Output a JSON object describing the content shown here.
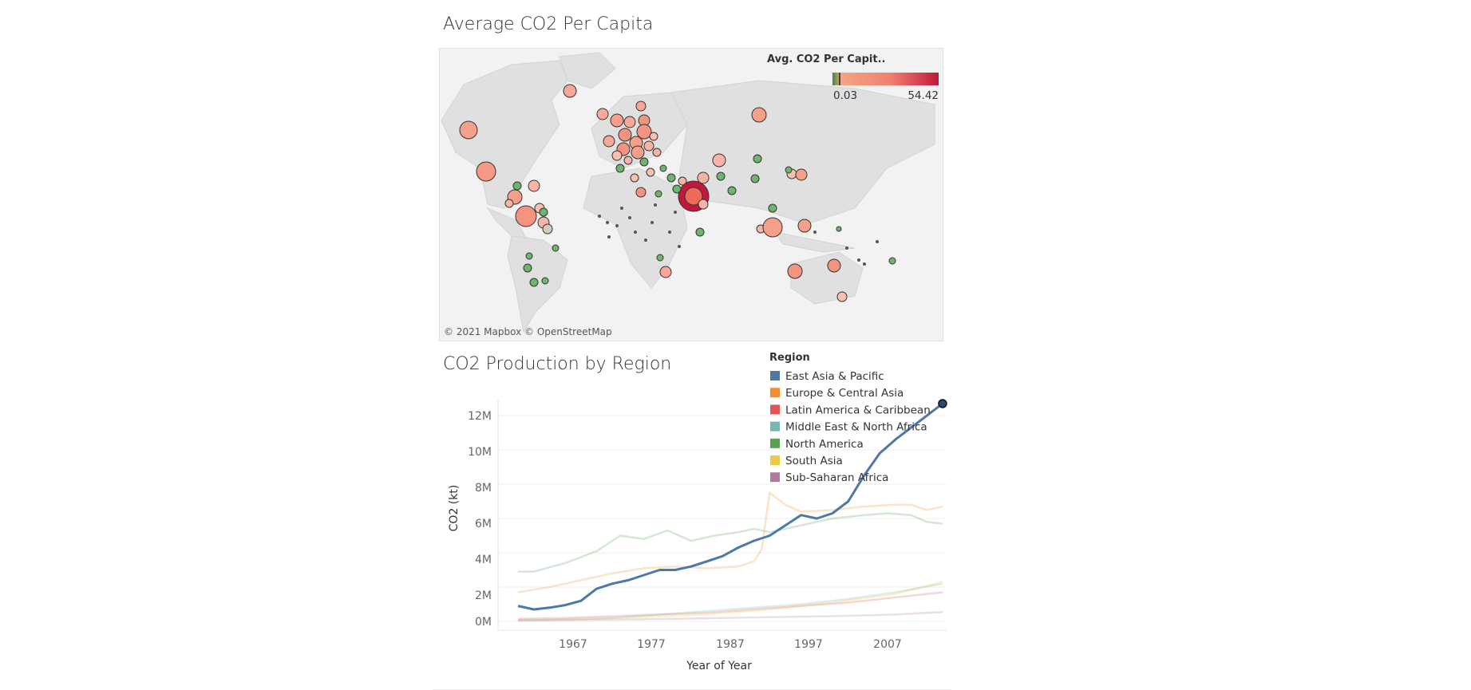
{
  "map": {
    "title": "Average CO2 Per Capita",
    "legend_title": "Avg. CO2 Per Capit..",
    "legend_min": "0.03",
    "legend_max": "54.42",
    "attribution": "© 2021 Mapbox © OpenStreetMap",
    "colors": {
      "low": "#3b8a3e",
      "mid": "#f4a582",
      "high": "#c2183c",
      "land": "#e0e0e0",
      "water": "#f2f2f2"
    }
  },
  "line_chart": {
    "title": "CO2 Production by Region",
    "legend_title": "Region",
    "ylabel": "CO2 (kt)",
    "xlabel": "Year of Year",
    "y_ticks": [
      "0M",
      "2M",
      "4M",
      "6M",
      "8M",
      "10M",
      "12M"
    ],
    "x_ticks": [
      "1967",
      "1977",
      "1987",
      "1997",
      "2007"
    ]
  },
  "chart_data": {
    "type": "line",
    "title": "CO2 Production by Region",
    "xlabel": "Year of Year",
    "ylabel": "CO2 (kt)",
    "ylim": [
      0,
      13000000
    ],
    "xlim": [
      1960,
      2014
    ],
    "highlighted_series": "East Asia & Pacific",
    "legend_position": "top-right",
    "series": [
      {
        "name": "East Asia & Pacific",
        "color": "#4e79a7",
        "x": [
          1960,
          1962,
          1964,
          1966,
          1968,
          1970,
          1972,
          1974,
          1976,
          1978,
          1980,
          1982,
          1984,
          1986,
          1988,
          1990,
          1992,
          1994,
          1996,
          1998,
          2000,
          2002,
          2004,
          2006,
          2008,
          2010,
          2012,
          2014
        ],
        "values": [
          900000,
          700000,
          800000,
          950000,
          1200000,
          1900000,
          2200000,
          2400000,
          2700000,
          3000000,
          3000000,
          3200000,
          3500000,
          3800000,
          4300000,
          4700000,
          5000000,
          5600000,
          6200000,
          6000000,
          6300000,
          7000000,
          8500000,
          9800000,
          10600000,
          11300000,
          12000000,
          12700000
        ]
      },
      {
        "name": "Europe & Central Asia",
        "color": "#f28e2b",
        "x": [
          1960,
          1964,
          1968,
          1972,
          1976,
          1980,
          1984,
          1988,
          1990,
          1991,
          1992,
          1994,
          1996,
          2000,
          2004,
          2008,
          2010,
          2012,
          2014
        ],
        "values": [
          1700000,
          2000000,
          2400000,
          2800000,
          3100000,
          3200000,
          3100000,
          3200000,
          3500000,
          4200000,
          7500000,
          6800000,
          6400000,
          6500000,
          6700000,
          6800000,
          6800000,
          6500000,
          6700000
        ]
      },
      {
        "name": "Latin America & Caribbean",
        "color": "#e15759",
        "x": [
          1960,
          1966,
          1972,
          1978,
          1984,
          1990,
          1996,
          2002,
          2008,
          2014
        ],
        "values": [
          150000,
          200000,
          300000,
          400000,
          500000,
          700000,
          900000,
          1100000,
          1400000,
          1700000
        ]
      },
      {
        "name": "Middle East & North Africa",
        "color": "#76b7b2",
        "x": [
          1960,
          1966,
          1972,
          1978,
          1984,
          1990,
          1996,
          2002,
          2008,
          2014
        ],
        "values": [
          50000,
          100000,
          200000,
          400000,
          600000,
          800000,
          1000000,
          1300000,
          1700000,
          2200000
        ]
      },
      {
        "name": "North America",
        "color": "#59a14f",
        "x": [
          1960,
          1962,
          1966,
          1970,
          1973,
          1976,
          1979,
          1982,
          1985,
          1988,
          1990,
          1992,
          1996,
          2000,
          2004,
          2007,
          2010,
          2012,
          2014
        ],
        "values": [
          2900000,
          2900000,
          3400000,
          4100000,
          5000000,
          4800000,
          5300000,
          4700000,
          5000000,
          5200000,
          5400000,
          5200000,
          5600000,
          6000000,
          6200000,
          6300000,
          6200000,
          5800000,
          5700000
        ]
      },
      {
        "name": "South Asia",
        "color": "#edc948",
        "x": [
          1960,
          1968,
          1976,
          1984,
          1992,
          2000,
          2008,
          2014
        ],
        "values": [
          100000,
          150000,
          250000,
          400000,
          700000,
          1100000,
          1600000,
          2300000
        ]
      },
      {
        "name": "Sub-Saharan Africa",
        "color": "#b07aa1",
        "x": [
          1960,
          1968,
          1976,
          1984,
          1992,
          2000,
          2008,
          2014
        ],
        "values": [
          50000,
          80000,
          120000,
          180000,
          250000,
          300000,
          400000,
          550000
        ]
      }
    ]
  }
}
